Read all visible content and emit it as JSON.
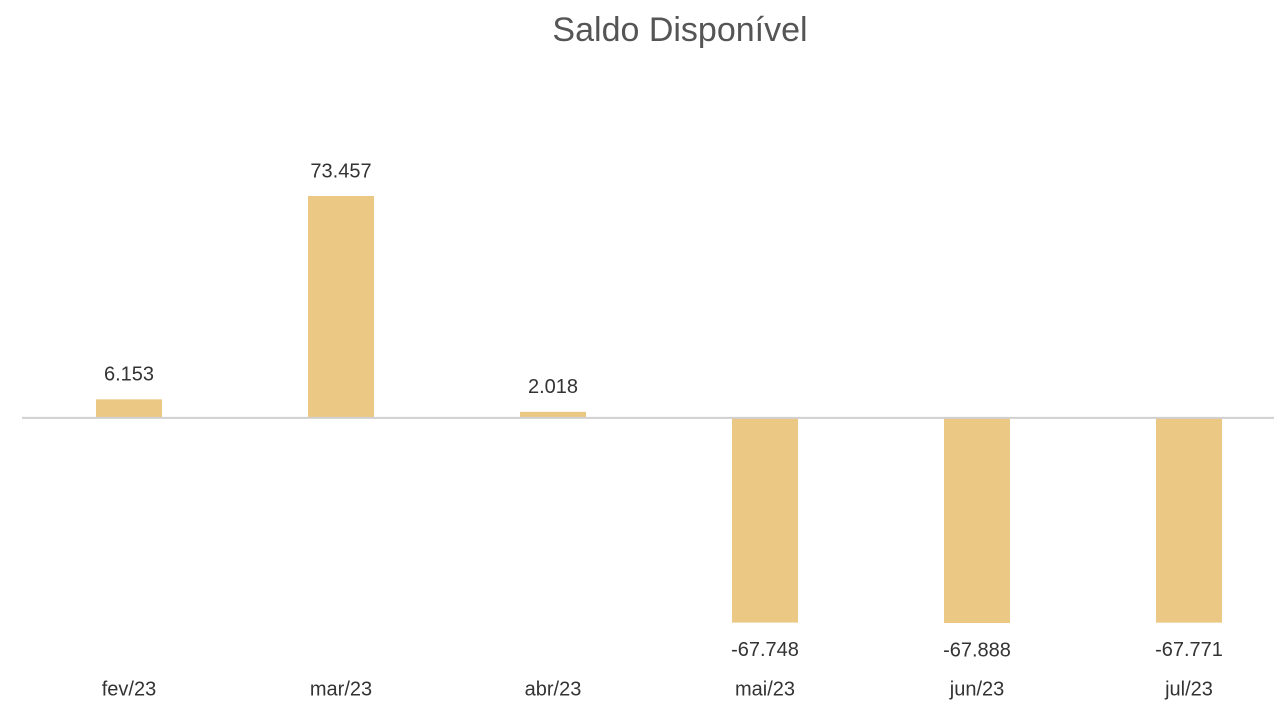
{
  "chart_data": {
    "type": "bar",
    "title": "Saldo Disponível",
    "categories": [
      "fev/23",
      "mar/23",
      "abr/23",
      "mai/23",
      "jun/23",
      "jul/23"
    ],
    "values": [
      6153,
      73457,
      2018,
      -67748,
      -67888,
      -67771
    ],
    "value_labels": [
      "6.153",
      "73.457",
      "2.018",
      "-67.748",
      "-67.888",
      "-67.771"
    ],
    "color": "#ebc884"
  }
}
